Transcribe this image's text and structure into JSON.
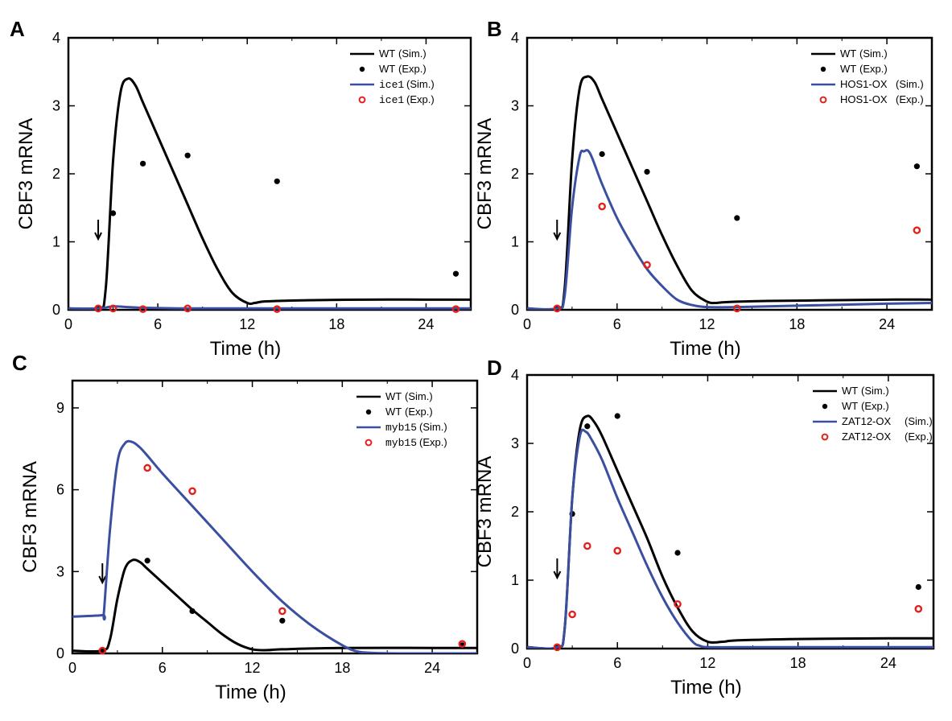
{
  "chart_data": [
    {
      "panel": "A",
      "type": "line",
      "title": "",
      "xlabel": "Time (h)",
      "ylabel": "CBF3 mRNA",
      "xlim": [
        0,
        27
      ],
      "ylim": [
        0,
        4
      ],
      "xticks": [
        0,
        6,
        12,
        18,
        24
      ],
      "yticks": [
        0,
        1,
        2,
        3,
        4
      ],
      "stimulus_time": 2,
      "legend_position": "top-right",
      "series": [
        {
          "name": "WT",
          "label": "(Sim.)",
          "kind": "line",
          "color": "#000000",
          "x": [
            0,
            2,
            2.5,
            3,
            3.5,
            4,
            4.5,
            5,
            6,
            7,
            8,
            9,
            10,
            11,
            12,
            12.5,
            13,
            14,
            16,
            20,
            24,
            27
          ],
          "y": [
            0.02,
            0.02,
            0.3,
            2.2,
            3.2,
            3.4,
            3.3,
            3.05,
            2.55,
            2.05,
            1.55,
            1.05,
            0.6,
            0.25,
            0.1,
            0.1,
            0.12,
            0.13,
            0.14,
            0.15,
            0.15,
            0.15
          ]
        },
        {
          "name": "WT",
          "label": "(Exp.)",
          "kind": "dot",
          "color": "#000000",
          "x": [
            2,
            3,
            5,
            8,
            14,
            26
          ],
          "y": [
            0.02,
            1.42,
            2.15,
            2.27,
            1.89,
            0.53
          ]
        },
        {
          "name": "ice1",
          "label": "(Sim.)",
          "kind": "line",
          "color": "#3b4fa0",
          "mono": true,
          "x": [
            0,
            2,
            3,
            4,
            5,
            8,
            12,
            18,
            24,
            27
          ],
          "y": [
            0.02,
            0.02,
            0.05,
            0.04,
            0.03,
            0.02,
            0.02,
            0.02,
            0.02,
            0.02
          ]
        },
        {
          "name": "ice1",
          "label": "(Exp.)",
          "kind": "ring",
          "color": "#e3211c",
          "mono": true,
          "x": [
            2,
            3,
            5,
            8,
            14,
            26
          ],
          "y": [
            0.02,
            0.02,
            0.01,
            0.02,
            0.01,
            0.01
          ]
        }
      ]
    },
    {
      "panel": "B",
      "type": "line",
      "title": "",
      "xlabel": "Time (h)",
      "ylabel": "CBF3 mRNA",
      "xlim": [
        0,
        27
      ],
      "ylim": [
        0,
        4
      ],
      "xticks": [
        0,
        6,
        12,
        18,
        24
      ],
      "yticks": [
        0,
        1,
        2,
        3,
        4
      ],
      "stimulus_time": 2,
      "legend_position": "top-right",
      "series": [
        {
          "name": "WT",
          "label": "(Sim.)",
          "kind": "line",
          "color": "#000000",
          "x": [
            0,
            2,
            2.5,
            3,
            3.5,
            4,
            4.5,
            5,
            6,
            7,
            8,
            9,
            10,
            11,
            12,
            12.5,
            13,
            14,
            16,
            20,
            24,
            27
          ],
          "y": [
            0.02,
            0.02,
            0.3,
            2.2,
            3.25,
            3.43,
            3.35,
            3.1,
            2.6,
            2.1,
            1.6,
            1.1,
            0.65,
            0.28,
            0.12,
            0.1,
            0.11,
            0.12,
            0.13,
            0.14,
            0.15,
            0.15
          ]
        },
        {
          "name": "WT",
          "label": "(Exp.)",
          "kind": "dot",
          "color": "#000000",
          "x": [
            2,
            5,
            8,
            14,
            26
          ],
          "y": [
            0.02,
            2.29,
            2.03,
            1.35,
            2.11
          ]
        },
        {
          "name": "HOS1-OX",
          "label": "(Sim.)",
          "kind": "line",
          "color": "#3b4fa0",
          "x": [
            0,
            2,
            2.5,
            3,
            3.5,
            3.8,
            4.2,
            5,
            6,
            7,
            8,
            9,
            10,
            11,
            12,
            14,
            18,
            24,
            27
          ],
          "y": [
            0.02,
            0.02,
            0.2,
            1.5,
            2.25,
            2.33,
            2.3,
            1.85,
            1.35,
            0.95,
            0.6,
            0.35,
            0.15,
            0.07,
            0.04,
            0.04,
            0.06,
            0.09,
            0.1
          ]
        },
        {
          "name": "HOS1-OX",
          "label": "(Exp.)",
          "kind": "ring",
          "color": "#e3211c",
          "x": [
            2,
            5,
            8,
            14,
            26
          ],
          "y": [
            0.02,
            1.52,
            0.66,
            0.02,
            1.17
          ]
        }
      ]
    },
    {
      "panel": "C",
      "type": "line",
      "title": "",
      "xlabel": "Time (h)",
      "ylabel": "CBF3 mRNA",
      "xlim": [
        0,
        27
      ],
      "ylim": [
        0,
        10
      ],
      "xticks": [
        0,
        6,
        12,
        18,
        24
      ],
      "yticks": [
        0,
        3,
        6,
        9
      ],
      "stimulus_time": 2,
      "legend_position": "top-right",
      "series": [
        {
          "name": "WT",
          "label": "(Sim.)",
          "kind": "line",
          "color": "#000000",
          "x": [
            0,
            2,
            2.5,
            3,
            3.5,
            4,
            4.5,
            5,
            6,
            7,
            8,
            9,
            10,
            11,
            12,
            13,
            14,
            18,
            24,
            27
          ],
          "y": [
            0.1,
            0.1,
            0.5,
            2.0,
            3.1,
            3.42,
            3.35,
            3.1,
            2.6,
            2.1,
            1.6,
            1.15,
            0.7,
            0.35,
            0.15,
            0.12,
            0.15,
            0.2,
            0.2,
            0.2
          ]
        },
        {
          "name": "WT",
          "label": "(Exp.)",
          "kind": "dot",
          "color": "#000000",
          "x": [
            2,
            5,
            8,
            14,
            26
          ],
          "y": [
            0.1,
            3.4,
            1.55,
            1.2,
            0.3
          ]
        },
        {
          "name": "myb15",
          "label": "(Sim.)",
          "kind": "line",
          "color": "#3b4fa0",
          "mono": true,
          "x": [
            0,
            2,
            2.1,
            2.5,
            3,
            3.5,
            4,
            4.5,
            5,
            6,
            8,
            10,
            12,
            14,
            16,
            18,
            19,
            20,
            22,
            24,
            27
          ],
          "y": [
            1.35,
            1.4,
            1.5,
            4.5,
            7.0,
            7.7,
            7.75,
            7.55,
            7.25,
            6.6,
            5.4,
            4.2,
            3.0,
            1.9,
            1.0,
            0.3,
            0.07,
            0.02,
            0.0,
            0.0,
            0.0
          ]
        },
        {
          "name": "myb15",
          "label": "(Exp.)",
          "kind": "ring",
          "color": "#e3211c",
          "mono": true,
          "x": [
            2,
            5,
            8,
            14,
            26
          ],
          "y": [
            0.1,
            6.8,
            5.95,
            1.55,
            0.35
          ]
        }
      ]
    },
    {
      "panel": "D",
      "type": "line",
      "title": "",
      "xlabel": "Time (h)",
      "ylabel": "CBF3 mRNA",
      "xlim": [
        0,
        27
      ],
      "ylim": [
        0,
        4
      ],
      "xticks": [
        0,
        6,
        12,
        18,
        24
      ],
      "yticks": [
        0,
        1,
        2,
        3,
        4
      ],
      "stimulus_time": 2,
      "legend_position": "top-right",
      "series": [
        {
          "name": "WT",
          "label": "(Sim.)",
          "kind": "line",
          "color": "#000000",
          "x": [
            0,
            2,
            2.5,
            3,
            3.5,
            4,
            4.5,
            5,
            6,
            7,
            8,
            9,
            10,
            11,
            12,
            13,
            14,
            18,
            24,
            27
          ],
          "y": [
            0.02,
            0.02,
            0.3,
            2.2,
            3.2,
            3.4,
            3.3,
            3.1,
            2.6,
            2.1,
            1.6,
            1.05,
            0.6,
            0.25,
            0.1,
            0.1,
            0.12,
            0.14,
            0.15,
            0.15
          ]
        },
        {
          "name": "WT",
          "label": "(Exp.)",
          "kind": "dot",
          "color": "#000000",
          "x": [
            2,
            3,
            4,
            6,
            10,
            26
          ],
          "y": [
            0.02,
            1.97,
            3.25,
            3.4,
            1.4,
            0.9
          ]
        },
        {
          "name": "ZAT12-OX",
          "label": "(Sim.)",
          "kind": "line",
          "color": "#3b4fa0",
          "x": [
            0,
            2,
            2.5,
            3,
            3.5,
            3.9,
            4.3,
            5,
            6,
            7,
            8,
            9,
            10,
            11,
            11.5,
            12,
            14,
            18,
            24,
            27
          ],
          "y": [
            0.02,
            0.02,
            0.3,
            2.2,
            3.1,
            3.17,
            3.05,
            2.75,
            2.2,
            1.7,
            1.2,
            0.75,
            0.38,
            0.1,
            0.04,
            0.02,
            0.02,
            0.02,
            0.02,
            0.02
          ]
        },
        {
          "name": "ZAT12-OX",
          "label": "(Exp.)",
          "kind": "ring",
          "color": "#e3211c",
          "x": [
            2,
            3,
            4,
            6,
            10,
            26
          ],
          "y": [
            0.02,
            0.5,
            1.5,
            1.43,
            0.65,
            0.58
          ]
        }
      ]
    }
  ]
}
